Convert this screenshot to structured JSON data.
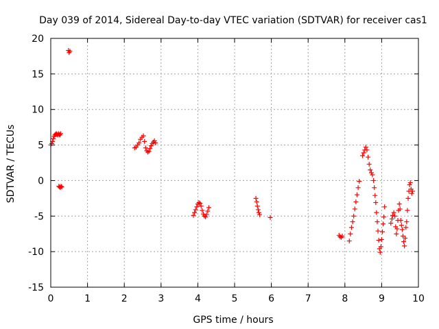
{
  "chart_data": {
    "type": "scatter",
    "title": "Day 039 of 2014, Sidereal Day-to-day VTEC variation (SDTVAR) for receiver cas1",
    "xlabel": "GPS time / hours",
    "ylabel": "SDTVAR / TECUs",
    "xlim": [
      0,
      10
    ],
    "ylim": [
      -15,
      20
    ],
    "xticks": [
      0,
      1,
      2,
      3,
      4,
      5,
      6,
      7,
      8,
      9,
      10
    ],
    "yticks": [
      -15,
      -10,
      -5,
      0,
      5,
      10,
      15,
      20
    ],
    "xtick_labels": [
      "0",
      "1",
      "2",
      "3",
      "4",
      "5",
      "6",
      "7",
      "8",
      "9",
      "10"
    ],
    "ytick_labels": [
      "-15",
      "-10",
      "-5",
      "0",
      "5",
      "10",
      "15",
      "20"
    ],
    "grid": true,
    "marker": "+",
    "color": "#ff0000",
    "series": [
      {
        "name": "cas1",
        "points": [
          [
            0.0,
            5.0
          ],
          [
            0.03,
            5.2
          ],
          [
            0.05,
            5.5
          ],
          [
            0.07,
            5.9
          ],
          [
            0.09,
            6.2
          ],
          [
            0.11,
            6.4
          ],
          [
            0.13,
            6.5
          ],
          [
            0.15,
            6.6
          ],
          [
            0.17,
            6.5
          ],
          [
            0.19,
            6.4
          ],
          [
            0.21,
            6.6
          ],
          [
            0.23,
            6.5
          ],
          [
            0.25,
            6.4
          ],
          [
            0.27,
            6.6
          ],
          [
            0.22,
            -0.8
          ],
          [
            0.24,
            -0.9
          ],
          [
            0.26,
            -1.0
          ],
          [
            0.28,
            -0.8
          ],
          [
            0.3,
            -0.9
          ],
          [
            0.48,
            18.3
          ],
          [
            0.5,
            18.0
          ],
          [
            0.52,
            18.2
          ],
          [
            2.28,
            4.6
          ],
          [
            2.32,
            4.7
          ],
          [
            2.36,
            5.0
          ],
          [
            2.4,
            5.3
          ],
          [
            2.44,
            5.8
          ],
          [
            2.48,
            6.1
          ],
          [
            2.52,
            6.3
          ],
          [
            2.55,
            5.5
          ],
          [
            2.58,
            4.6
          ],
          [
            2.61,
            4.2
          ],
          [
            2.64,
            4.0
          ],
          [
            2.67,
            4.1
          ],
          [
            2.7,
            4.5
          ],
          [
            2.73,
            4.9
          ],
          [
            2.76,
            5.2
          ],
          [
            2.79,
            5.4
          ],
          [
            2.82,
            5.6
          ],
          [
            2.85,
            5.3
          ],
          [
            3.88,
            -4.9
          ],
          [
            3.91,
            -4.5
          ],
          [
            3.94,
            -4.1
          ],
          [
            3.97,
            -3.7
          ],
          [
            4.0,
            -3.3
          ],
          [
            4.03,
            -3.1
          ],
          [
            4.06,
            -3.2
          ],
          [
            4.09,
            -3.6
          ],
          [
            4.12,
            -4.2
          ],
          [
            4.15,
            -4.7
          ],
          [
            4.18,
            -5.0
          ],
          [
            4.21,
            -5.1
          ],
          [
            4.24,
            -4.8
          ],
          [
            4.27,
            -4.3
          ],
          [
            4.3,
            -3.8
          ],
          [
            5.58,
            -2.5
          ],
          [
            5.6,
            -3.0
          ],
          [
            5.62,
            -3.6
          ],
          [
            5.64,
            -4.1
          ],
          [
            5.66,
            -4.5
          ],
          [
            5.68,
            -4.8
          ],
          [
            5.97,
            -5.2
          ],
          [
            7.84,
            -7.7
          ],
          [
            7.87,
            -7.9
          ],
          [
            7.9,
            -8.0
          ],
          [
            7.93,
            -7.8
          ],
          [
            8.12,
            -8.5
          ],
          [
            8.15,
            -7.5
          ],
          [
            8.18,
            -6.6
          ],
          [
            8.21,
            -5.8
          ],
          [
            8.24,
            -5.0
          ],
          [
            8.27,
            -4.0
          ],
          [
            8.3,
            -3.0
          ],
          [
            8.33,
            -2.0
          ],
          [
            8.36,
            -1.0
          ],
          [
            8.39,
            -0.1
          ],
          [
            8.48,
            3.5
          ],
          [
            8.51,
            3.9
          ],
          [
            8.54,
            4.3
          ],
          [
            8.57,
            4.7
          ],
          [
            8.6,
            4.3
          ],
          [
            8.63,
            3.3
          ],
          [
            8.66,
            2.3
          ],
          [
            8.69,
            1.5
          ],
          [
            8.72,
            1.1
          ],
          [
            8.75,
            0.8
          ],
          [
            8.78,
            0.0
          ],
          [
            8.8,
            -1.0
          ],
          [
            8.82,
            -2.1
          ],
          [
            8.84,
            -3.1
          ],
          [
            8.86,
            -4.5
          ],
          [
            8.88,
            -5.8
          ],
          [
            8.9,
            -7.1
          ],
          [
            8.92,
            -8.4
          ],
          [
            8.94,
            -9.6
          ],
          [
            8.96,
            -10.1
          ],
          [
            8.98,
            -9.3
          ],
          [
            9.0,
            -8.3
          ],
          [
            9.02,
            -7.2
          ],
          [
            9.04,
            -6.1
          ],
          [
            9.06,
            -5.1
          ],
          [
            9.08,
            -3.7
          ],
          [
            9.25,
            -6.0
          ],
          [
            9.28,
            -5.4
          ],
          [
            9.3,
            -4.9
          ],
          [
            9.33,
            -4.5
          ],
          [
            9.36,
            -5.0
          ],
          [
            9.38,
            -6.5
          ],
          [
            9.4,
            -7.5
          ],
          [
            9.42,
            -6.8
          ],
          [
            9.44,
            -5.6
          ],
          [
            9.46,
            -4.2
          ],
          [
            9.48,
            -3.3
          ],
          [
            9.5,
            -4.0
          ],
          [
            9.52,
            -5.6
          ],
          [
            9.54,
            -6.3
          ],
          [
            9.56,
            -6.9
          ],
          [
            9.58,
            -7.8
          ],
          [
            9.6,
            -8.6
          ],
          [
            9.62,
            -9.2
          ],
          [
            9.64,
            -8.1
          ],
          [
            9.66,
            -6.6
          ],
          [
            9.68,
            -5.8
          ],
          [
            9.7,
            -4.2
          ],
          [
            9.72,
            -2.5
          ],
          [
            9.74,
            -1.5
          ],
          [
            9.76,
            -0.6
          ],
          [
            9.78,
            -0.3
          ],
          [
            9.8,
            -1.2
          ],
          [
            9.82,
            -1.8
          ],
          [
            9.84,
            -1.5
          ]
        ]
      }
    ]
  }
}
